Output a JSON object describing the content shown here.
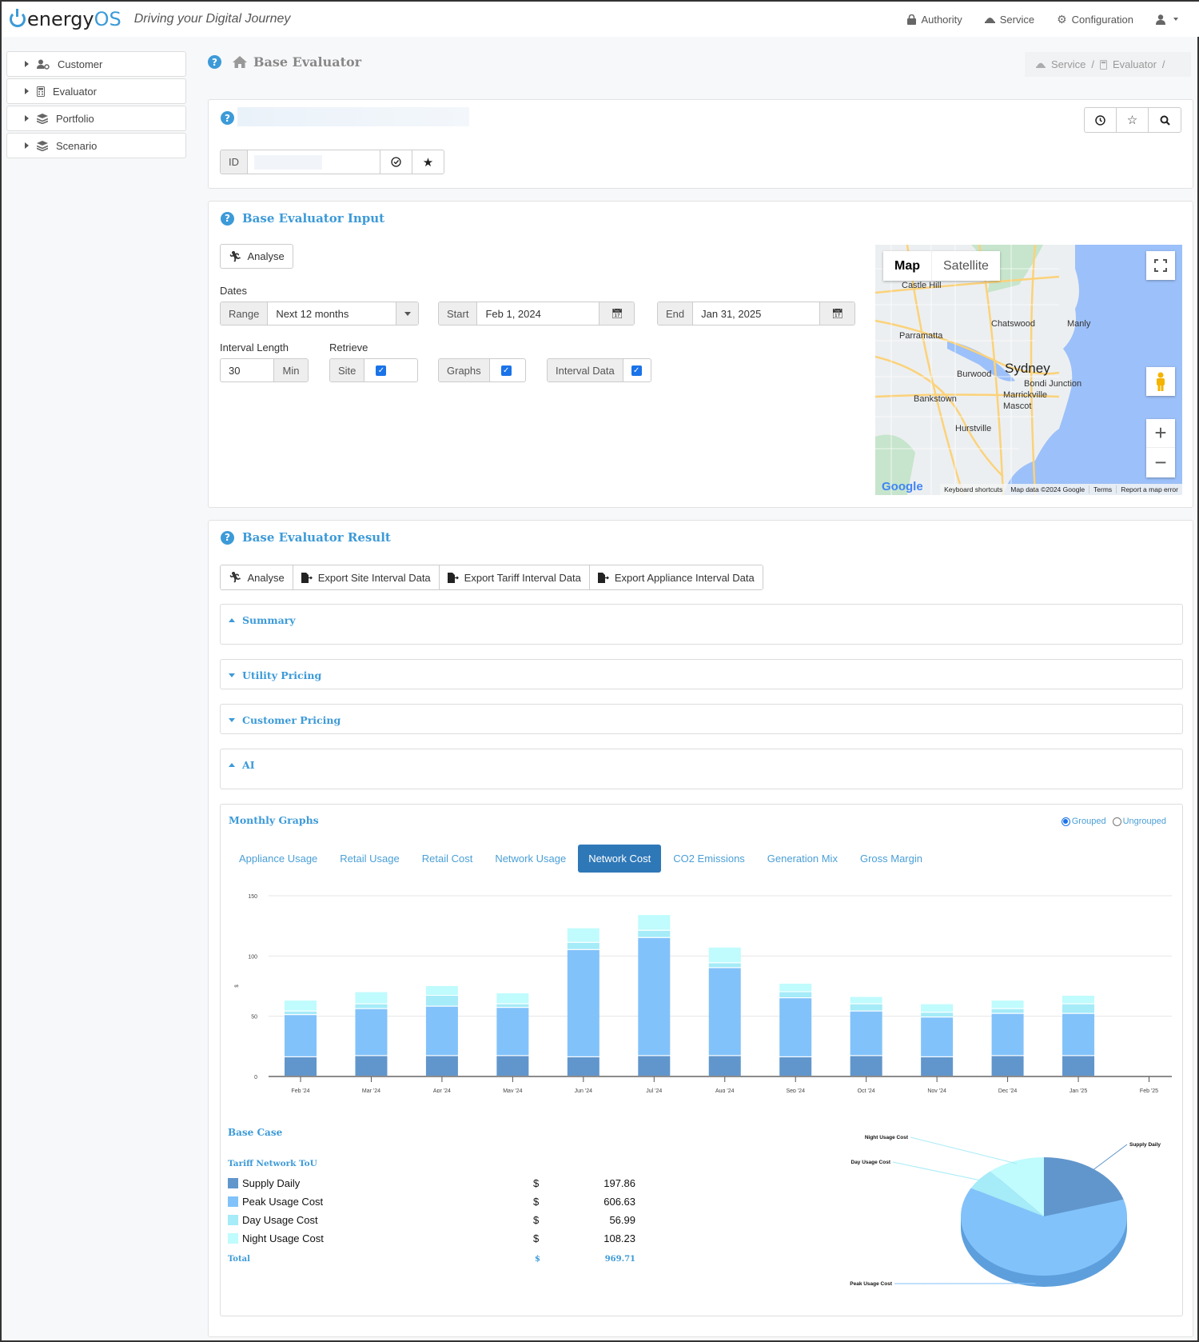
{
  "header": {
    "logo_prefix": "energy",
    "logo_suffix": "OS",
    "tagline": "Driving your Digital Journey",
    "nav": [
      {
        "label": "Authority",
        "icon": "lock-icon"
      },
      {
        "label": "Service",
        "icon": "service-bell-icon"
      },
      {
        "label": "Configuration",
        "icon": "gear-icon"
      }
    ],
    "user_icon": "user-icon"
  },
  "sidebar": {
    "items": [
      {
        "label": "Customer",
        "icon": "user-gear-icon"
      },
      {
        "label": "Evaluator",
        "icon": "calculator-icon"
      },
      {
        "label": "Portfolio",
        "icon": "layers-icon"
      },
      {
        "label": "Scenario",
        "icon": "layers-icon"
      }
    ]
  },
  "page": {
    "title": "Base Evaluator",
    "breadcrumb": [
      "Service",
      "Evaluator"
    ]
  },
  "record": {
    "id_label": "ID",
    "id_value": ""
  },
  "input": {
    "title": "Base Evaluator Input",
    "analyse_label": "Analyse",
    "dates_label": "Dates",
    "range_label": "Range",
    "range_value": "Next 12 months",
    "start_label": "Start",
    "start_value": "Feb 1, 2024",
    "end_label": "End",
    "end_value": "Jan 31, 2025",
    "interval_label": "Interval Length",
    "interval_value": "30",
    "interval_unit": "Min",
    "retrieve_label": "Retrieve",
    "retrieve": [
      {
        "label": "Site",
        "checked": true
      },
      {
        "label": "Graphs",
        "checked": true
      },
      {
        "label": "Interval Data",
        "checked": true
      }
    ],
    "map": {
      "type_map": "Map",
      "type_satellite": "Satellite",
      "city": "Sydney",
      "places": [
        "Castle Hill",
        "Chatswood",
        "Manly",
        "Parramatta",
        "Burwood",
        "Bondi Junction",
        "Marrickville",
        "Bankstown",
        "Mascot",
        "Hurstville"
      ],
      "footer": [
        "Keyboard shortcuts",
        "Map data ©2024 Google",
        "Terms",
        "Report a map error"
      ],
      "brand": "Google"
    }
  },
  "result": {
    "title": "Base Evaluator Result",
    "actions": [
      "Analyse",
      "Export Site Interval Data",
      "Export Tariff Interval Data",
      "Export Appliance Interval Data"
    ],
    "sections": [
      {
        "label": "Summary",
        "state": "expanded"
      },
      {
        "label": "Utility Pricing",
        "state": "collapsed"
      },
      {
        "label": "Customer Pricing",
        "state": "collapsed"
      },
      {
        "label": "AI",
        "state": "expanded"
      }
    ],
    "graphs": {
      "title": "Monthly Graphs",
      "mode_grouped": "Grouped",
      "mode_ungrouped": "Ungrouped",
      "tabs": [
        "Appliance Usage",
        "Retail Usage",
        "Retail Cost",
        "Network Usage",
        "Network Cost",
        "CO2 Emissions",
        "Generation Mix",
        "Gross Margin"
      ],
      "active_tab": "Network Cost"
    },
    "base_case": {
      "title": "Base Case",
      "tariff": "Tariff Network ToU",
      "currency": "$",
      "rows": [
        {
          "label": "Supply Daily",
          "value": "197.86",
          "color": "#6196cc"
        },
        {
          "label": "Peak Usage Cost",
          "value": "606.63",
          "color": "#82c2fa"
        },
        {
          "label": "Day Usage Cost",
          "value": "56.99",
          "color": "#a5ebf8"
        },
        {
          "label": "Night Usage Cost",
          "value": "108.23",
          "color": "#c0fbfd"
        }
      ],
      "total_label": "Total",
      "total_value": "969.71"
    }
  },
  "chart_data": [
    {
      "type": "bar",
      "stacked": true,
      "title": "Network Cost",
      "xlabel": "",
      "ylabel": "$",
      "ylim": [
        0,
        150
      ],
      "yticks": [
        0,
        50,
        100,
        150
      ],
      "grid": true,
      "categories": [
        "Feb '24",
        "Mar '24",
        "Apr '24",
        "May '24",
        "Jun '24",
        "Jul '24",
        "Aug '24",
        "Sep '24",
        "Oct '24",
        "Nov '24",
        "Dec '24",
        "Jan '25",
        "Feb '25"
      ],
      "series": [
        {
          "name": "Supply Daily",
          "color": "#6196cc",
          "values": [
            16,
            17,
            17,
            17,
            16,
            17,
            17,
            16,
            17,
            16,
            17,
            17,
            0
          ]
        },
        {
          "name": "Peak Usage Cost",
          "color": "#82c2fa",
          "values": [
            35,
            39,
            41,
            40,
            89,
            98,
            73,
            49,
            37,
            33,
            35,
            35,
            0
          ]
        },
        {
          "name": "Day Usage Cost",
          "color": "#a5ebf8",
          "values": [
            3,
            4,
            9,
            3,
            6,
            6,
            4,
            5,
            6,
            4,
            4,
            8,
            0
          ]
        },
        {
          "name": "Night Usage Cost",
          "color": "#c0fbfd",
          "values": [
            9,
            10,
            8,
            9,
            12,
            13,
            13,
            7,
            6,
            7,
            7,
            7,
            0
          ]
        }
      ]
    },
    {
      "type": "pie",
      "title": "Tariff Network ToU",
      "labels": [
        "Supply Daily",
        "Peak Usage Cost",
        "Day Usage Cost",
        "Night Usage Cost"
      ],
      "values": [
        197.86,
        606.63,
        56.99,
        108.23
      ],
      "colors": [
        "#6196cc",
        "#82c2fa",
        "#a5ebf8",
        "#c0fbfd"
      ]
    }
  ]
}
